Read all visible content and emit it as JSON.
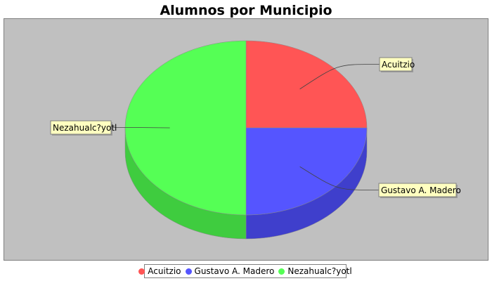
{
  "chart_data": {
    "type": "pie",
    "title": "Alumnos por Municipio",
    "categories": [
      "Acuitzio",
      "Gustavo A. Madero",
      "Nezahualc?yotl"
    ],
    "values": [
      25,
      25,
      50
    ],
    "legend_position": "bottom",
    "three_d": true,
    "colors": [
      "#ff5555",
      "#5555ff",
      "#55ff55"
    ],
    "side_colors": [
      "#cc3f3f",
      "#3f3fcc",
      "#3fcc3f"
    ],
    "plot_background": "#c0c0c0",
    "label_background": "#ffffc0"
  }
}
